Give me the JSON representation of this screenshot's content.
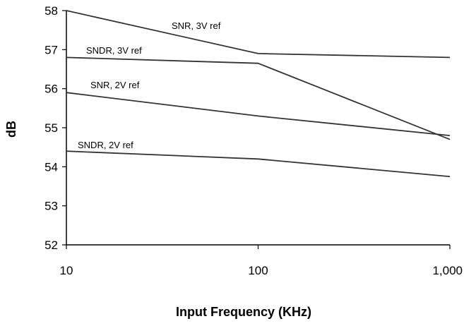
{
  "chart_data": {
    "type": "line",
    "title": "",
    "xlabel": "Input Frequency (KHz)",
    "ylabel": "dB",
    "x_scale": "log",
    "xlim": [
      10,
      1000
    ],
    "ylim": [
      52,
      58
    ],
    "x_ticks": [
      10,
      100,
      1000
    ],
    "x_tick_labels": [
      "10",
      "100",
      "1,000"
    ],
    "y_ticks": [
      52,
      53,
      54,
      55,
      56,
      57,
      58
    ],
    "y_tick_labels": [
      "52",
      "53",
      "54",
      "55",
      "56",
      "57",
      "58"
    ],
    "grid": false,
    "legend": "none",
    "series": [
      {
        "name": "SNR, 3V ref",
        "x": [
          10,
          100,
          1000
        ],
        "y": [
          58.0,
          56.9,
          56.8
        ]
      },
      {
        "name": "SNDR, 3V ref",
        "x": [
          10,
          100,
          1000
        ],
        "y": [
          56.8,
          56.65,
          54.7
        ]
      },
      {
        "name": "SNR, 2V ref",
        "x": [
          10,
          100,
          1000
        ],
        "y": [
          55.9,
          55.3,
          54.8
        ]
      },
      {
        "name": "SNDR, 2V ref",
        "x": [
          10,
          100,
          1000
        ],
        "y": [
          54.4,
          54.2,
          53.75
        ]
      }
    ],
    "colors": {
      "line": "#333333",
      "axis": "#000000",
      "background": "#ffffff"
    }
  }
}
